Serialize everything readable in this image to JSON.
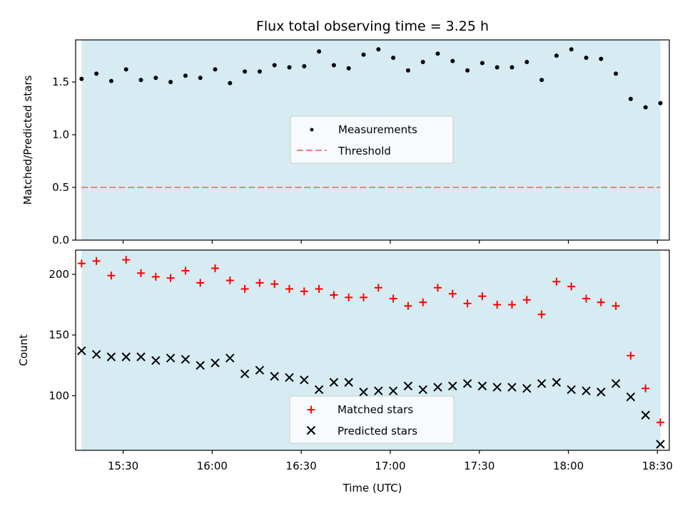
{
  "colors": {
    "observing_band": "#add8e6",
    "measurement": "#000000",
    "threshold": "#f08080",
    "matched": "#ff0000",
    "predicted": "#000000"
  },
  "chart_data": [
    {
      "type": "scatter",
      "title": "Flux total observing time = 3.25 h",
      "ylabel": "Matched/Predicted stars",
      "xlim": [
        "15:14",
        "18:34"
      ],
      "ylim": [
        0,
        1.9
      ],
      "yticks": [
        "0.0",
        "0.5",
        "1.0",
        "1.5"
      ],
      "observing_window": [
        "15:16",
        "18:31"
      ],
      "threshold": 0.5,
      "legend_position": "center",
      "legend": [
        "Measurements",
        "Threshold"
      ],
      "series": [
        {
          "name": "Measurements",
          "marker": "dot",
          "x": [
            "15:16",
            "15:21",
            "15:26",
            "15:31",
            "15:36",
            "15:41",
            "15:46",
            "15:51",
            "15:56",
            "16:01",
            "16:06",
            "16:11",
            "16:16",
            "16:21",
            "16:26",
            "16:31",
            "16:36",
            "16:41",
            "16:46",
            "16:51",
            "16:56",
            "17:01",
            "17:06",
            "17:11",
            "17:16",
            "17:21",
            "17:26",
            "17:31",
            "17:36",
            "17:41",
            "17:46",
            "17:51",
            "17:56",
            "18:01",
            "18:06",
            "18:11",
            "18:16",
            "18:21",
            "18:26",
            "18:31"
          ],
          "y": [
            1.53,
            1.58,
            1.51,
            1.62,
            1.52,
            1.54,
            1.5,
            1.56,
            1.54,
            1.62,
            1.49,
            1.6,
            1.6,
            1.66,
            1.64,
            1.65,
            1.79,
            1.66,
            1.63,
            1.76,
            1.81,
            1.73,
            1.61,
            1.69,
            1.77,
            1.7,
            1.61,
            1.68,
            1.64,
            1.64,
            1.69,
            1.52,
            1.75,
            1.81,
            1.73,
            1.72,
            1.58,
            1.34,
            1.26,
            1.3
          ]
        }
      ]
    },
    {
      "type": "scatter",
      "ylabel": "Count",
      "xlabel": "Time (UTC)",
      "xlim": [
        "15:14",
        "18:34"
      ],
      "ylim": [
        55,
        220
      ],
      "yticks": [
        "100",
        "150",
        "200"
      ],
      "xticks": [
        "15:30",
        "16:00",
        "16:30",
        "17:00",
        "17:30",
        "18:00",
        "18:30"
      ],
      "observing_window": [
        "15:16",
        "18:31"
      ],
      "legend_position": "lower center",
      "legend": [
        "Matched stars",
        "Predicted stars"
      ],
      "series": [
        {
          "name": "Matched stars",
          "marker": "plus",
          "x": [
            "15:16",
            "15:21",
            "15:26",
            "15:31",
            "15:36",
            "15:41",
            "15:46",
            "15:51",
            "15:56",
            "16:01",
            "16:06",
            "16:11",
            "16:16",
            "16:21",
            "16:26",
            "16:31",
            "16:36",
            "16:41",
            "16:46",
            "16:51",
            "16:56",
            "17:01",
            "17:06",
            "17:11",
            "17:16",
            "17:21",
            "17:26",
            "17:31",
            "17:36",
            "17:41",
            "17:46",
            "17:51",
            "17:56",
            "18:01",
            "18:06",
            "18:11",
            "18:16",
            "18:21",
            "18:26",
            "18:31"
          ],
          "y": [
            209,
            211,
            199,
            212,
            201,
            198,
            197,
            203,
            193,
            205,
            195,
            188,
            193,
            192,
            188,
            186,
            188,
            183,
            181,
            181,
            189,
            180,
            174,
            177,
            189,
            184,
            176,
            182,
            175,
            175,
            179,
            167,
            194,
            190,
            180,
            177,
            174,
            133,
            106,
            78
          ]
        },
        {
          "name": "Predicted stars",
          "marker": "x",
          "x": [
            "15:16",
            "15:21",
            "15:26",
            "15:31",
            "15:36",
            "15:41",
            "15:46",
            "15:51",
            "15:56",
            "16:01",
            "16:06",
            "16:11",
            "16:16",
            "16:21",
            "16:26",
            "16:31",
            "16:36",
            "16:41",
            "16:46",
            "16:51",
            "16:56",
            "17:01",
            "17:06",
            "17:11",
            "17:16",
            "17:21",
            "17:26",
            "17:31",
            "17:36",
            "17:41",
            "17:46",
            "17:51",
            "17:56",
            "18:01",
            "18:06",
            "18:11",
            "18:16",
            "18:21",
            "18:26",
            "18:31"
          ],
          "y": [
            137,
            134,
            132,
            132,
            132,
            129,
            131,
            130,
            125,
            127,
            131,
            118,
            121,
            116,
            115,
            113,
            105,
            111,
            111,
            103,
            104,
            104,
            108,
            105,
            107,
            108,
            110,
            108,
            107,
            107,
            106,
            110,
            111,
            105,
            104,
            103,
            110,
            99,
            84,
            60
          ]
        }
      ]
    }
  ]
}
